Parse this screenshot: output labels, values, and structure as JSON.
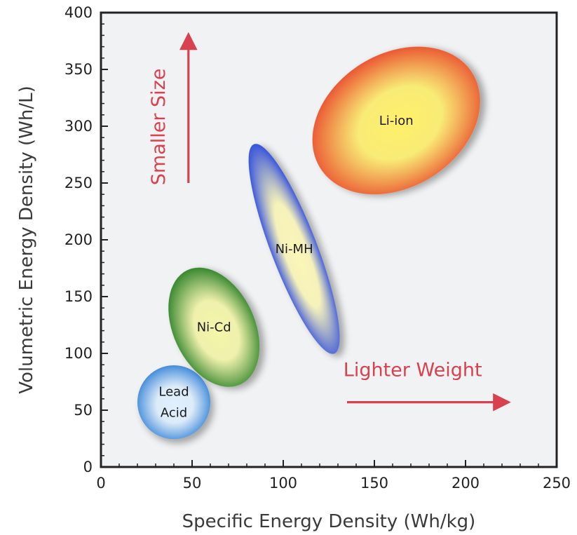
{
  "chart_data": {
    "type": "scatter",
    "title": "",
    "xlabel": "Specific Energy Density (Wh/kg)",
    "ylabel": "Volumetric Energy Density (Wh/L)",
    "xlim": [
      0,
      250
    ],
    "ylim": [
      0,
      400
    ],
    "x_ticks": [
      0,
      50,
      100,
      150,
      200,
      250
    ],
    "y_ticks": [
      0,
      50,
      100,
      150,
      200,
      250,
      300,
      350,
      400
    ],
    "grid": false,
    "regions": [
      {
        "name": "Lead Acid",
        "label_lines": [
          "Lead",
          "Acid"
        ],
        "x_center": 40,
        "y_center": 57,
        "x_range": [
          20,
          60
        ],
        "y_range": [
          25,
          90
        ],
        "rotation_deg": 0,
        "color_outer": "#2f7fd6",
        "color_inner": "#dff0ff"
      },
      {
        "name": "Ni-Cd",
        "label_lines": [
          "Ni-Cd"
        ],
        "x_center": 62,
        "y_center": 123,
        "x_range": [
          38,
          88
        ],
        "y_range": [
          75,
          180
        ],
        "rotation_deg": -25,
        "color_outer": "#1f7a1f",
        "color_inner": "#f4f6a8"
      },
      {
        "name": "Ni-MH",
        "label_lines": [
          "Ni-MH"
        ],
        "x_center": 106,
        "y_center": 192,
        "x_range": [
          82,
          132
        ],
        "y_range": [
          105,
          290
        ],
        "rotation_deg": -21,
        "color_outer": "#1f3fe0",
        "color_inner": "#fbf7b8"
      },
      {
        "name": "Li-ion",
        "label_lines": [
          "Li-ion"
        ],
        "x_center": 162,
        "y_center": 305,
        "x_range": [
          120,
          212
        ],
        "y_range": [
          240,
          370
        ],
        "rotation_deg": -32,
        "color_outer": "#e8442a",
        "color_inner": "#fff06a"
      }
    ],
    "annotations": [
      {
        "text": "Smaller Size",
        "direction": "up",
        "arrow_from": [
          48,
          250
        ],
        "arrow_to": [
          48,
          375
        ],
        "text_at": [
          35,
          248
        ],
        "color": "#d8424f"
      },
      {
        "text": "Lighter Weight",
        "direction": "right",
        "arrow_from": [
          135,
          57
        ],
        "arrow_to": [
          220,
          57
        ],
        "text_at": [
          133,
          80
        ],
        "color": "#d8424f"
      }
    ],
    "plot_background": "#f1f2f3"
  }
}
